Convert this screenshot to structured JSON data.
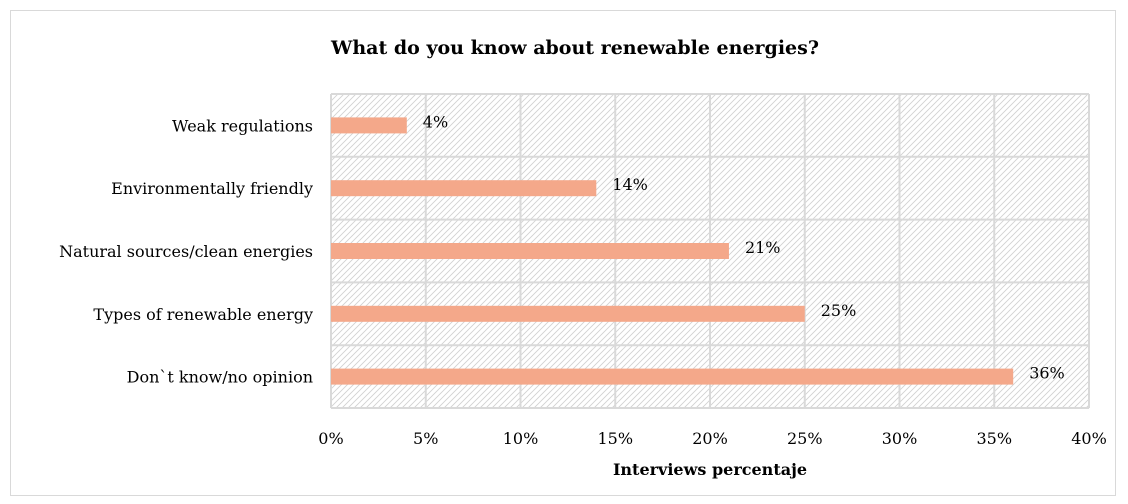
{
  "chart_data": {
    "type": "bar",
    "orientation": "horizontal",
    "title": "What do you know about renewable energies?",
    "xlabel": "Interviews percentaje",
    "ylabel": "",
    "categories": [
      "Weak regulations",
      "Environmentally friendly",
      "Natural sources/clean energies",
      "Types of renewable energy",
      "Don`t know/no opinion"
    ],
    "values": [
      4,
      14,
      21,
      25,
      36
    ],
    "data_labels": [
      "4%",
      "14%",
      "21%",
      "25%",
      "36%"
    ],
    "xlim": [
      0,
      40
    ],
    "x_ticks": [
      0,
      5,
      10,
      15,
      20,
      25,
      30,
      35,
      40
    ],
    "x_tick_labels": [
      "0%",
      "5%",
      "10%",
      "15%",
      "20%",
      "25%",
      "30%",
      "35%",
      "40%"
    ],
    "grid": true,
    "plot_background": "diagonal-hatch",
    "colors": {
      "bar": "#f4a88a",
      "grid": "#d9d9d9",
      "hatch": "#d0d0d0"
    }
  }
}
